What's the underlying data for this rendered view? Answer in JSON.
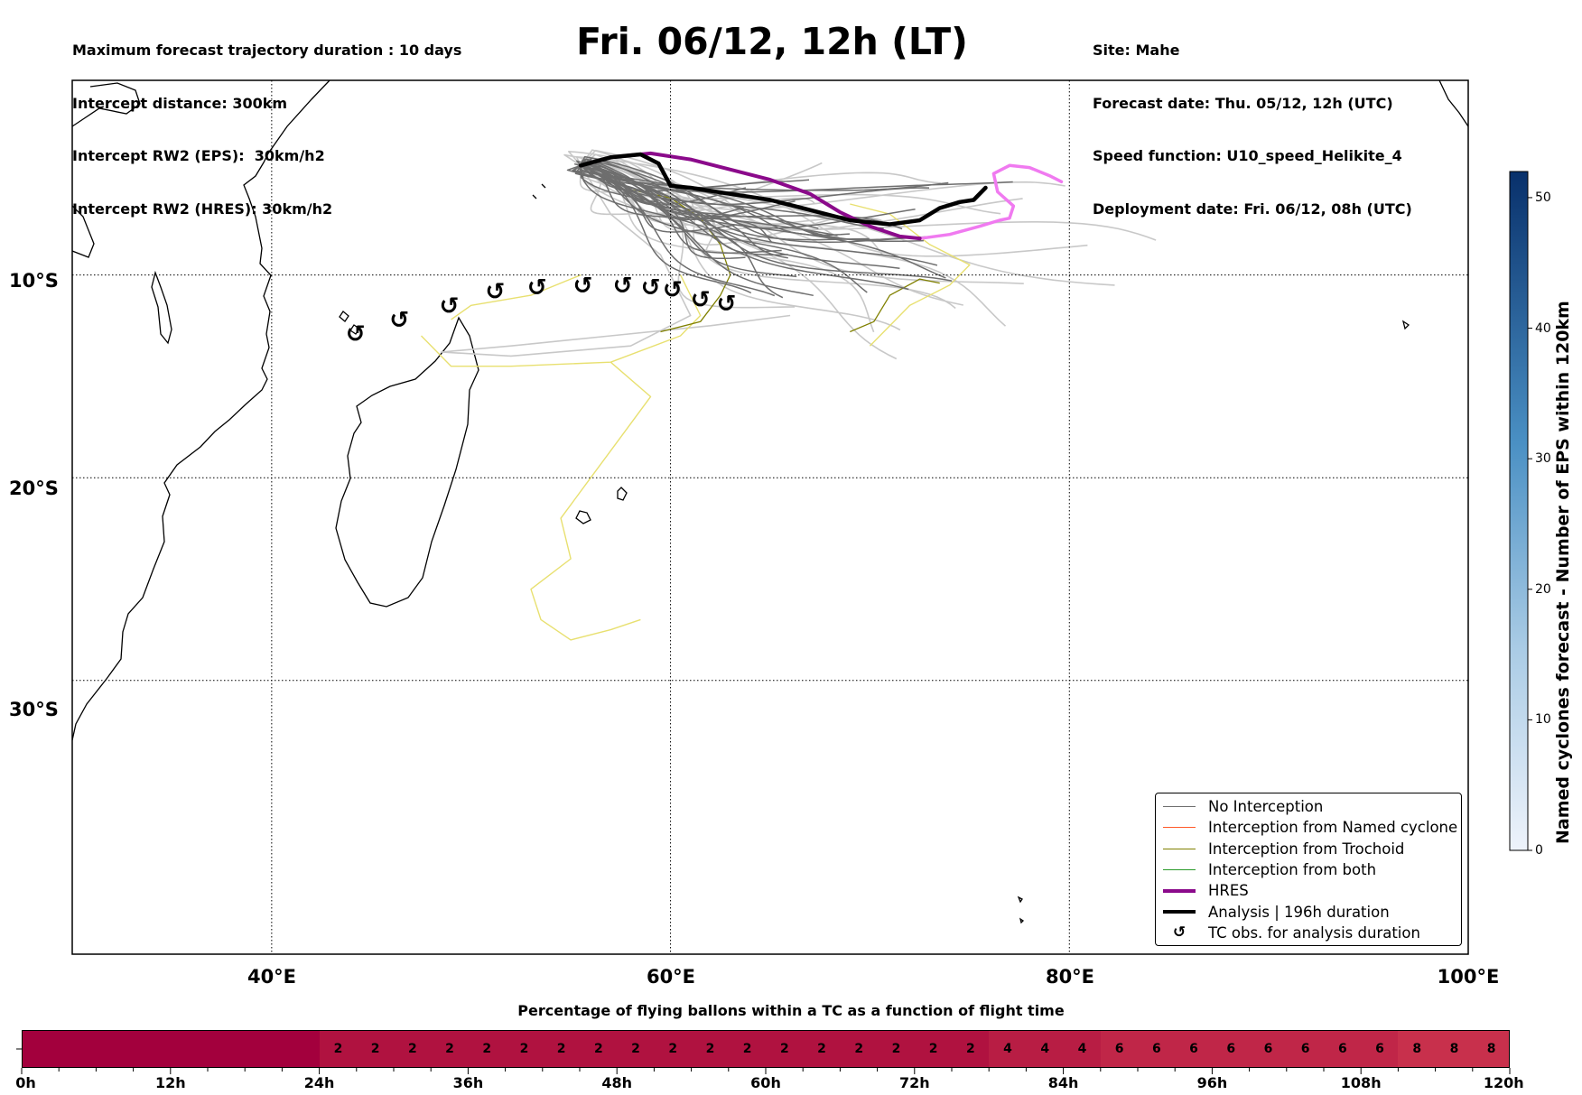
{
  "header": {
    "info_left": [
      "Maximum forecast trajectory duration : 10 days",
      "Intercept distance: 300km",
      "Intercept RW2 (EPS):  30km/h2",
      "Intercept RW2 (HRES): 30km/h2"
    ],
    "title": "Fri. 06/12, 12h (LT)",
    "info_right": [
      "Site: Mahe",
      "Forecast date: Thu. 05/12, 12h (UTC)",
      "Speed function: U10_speed_Helikite_4",
      "Deployment date: Fri. 06/12, 08h (UTC)"
    ]
  },
  "map": {
    "lon_labels": [
      "40°E",
      "60°E",
      "80°E",
      "100°E"
    ],
    "lat_labels": [
      "10°S",
      "20°S",
      "30°S"
    ],
    "lon_range": [
      30,
      100
    ],
    "lat_range": [
      -43.5,
      -0.4
    ],
    "gridlines": "dotted",
    "colors": {
      "no_interception": "#6e6e6e",
      "no_interception_light": "#c8c8c8",
      "named_cyclone": "#ff5a2a",
      "trochoid": "#808000",
      "trochoid_light": "#e8e070",
      "both": "#2a9a2a",
      "hres": "#8b0a8b",
      "hres_tail": "#f07af0",
      "analysis": "#000000"
    },
    "launch_site": {
      "lon": 55.5,
      "lat": -4.6
    },
    "analysis_track": [
      [
        55.5,
        -4.6
      ],
      [
        57,
        -4.2
      ],
      [
        58.5,
        -4.05
      ],
      [
        59.4,
        -4.5
      ],
      [
        60,
        -5.6
      ],
      [
        61,
        -5.7
      ],
      [
        63,
        -6.0
      ],
      [
        65,
        -6.3
      ],
      [
        67,
        -6.8
      ],
      [
        69,
        -7.3
      ],
      [
        71,
        -7.5
      ],
      [
        72.5,
        -7.3
      ],
      [
        73.5,
        -6.7
      ],
      [
        74.5,
        -6.4
      ],
      [
        75.2,
        -6.3
      ],
      [
        75.8,
        -5.7
      ]
    ],
    "hres_track": [
      [
        55.5,
        -4.6
      ],
      [
        57,
        -4.2
      ],
      [
        59,
        -4.0
      ],
      [
        61,
        -4.3
      ],
      [
        63,
        -4.8
      ],
      [
        65,
        -5.3
      ],
      [
        67,
        -6.0
      ],
      [
        68.5,
        -6.9
      ],
      [
        70,
        -7.6
      ],
      [
        71.5,
        -8.1
      ],
      [
        72.5,
        -8.2
      ]
    ],
    "hres_tail_track": [
      [
        72.5,
        -8.2
      ],
      [
        74,
        -8.0
      ],
      [
        75.5,
        -7.6
      ],
      [
        76.5,
        -7.3
      ],
      [
        77,
        -7.2
      ],
      [
        77.2,
        -6.6
      ],
      [
        76.4,
        -5.9
      ],
      [
        76.2,
        -5.0
      ],
      [
        77,
        -4.6
      ],
      [
        78,
        -4.7
      ],
      [
        79,
        -5.1
      ],
      [
        79.6,
        -5.4
      ]
    ],
    "tc_obs": [
      [
        44.2,
        -12.9
      ],
      [
        46.4,
        -12.2
      ],
      [
        48.9,
        -11.5
      ],
      [
        51.2,
        -10.8
      ],
      [
        53.3,
        -10.6
      ],
      [
        55.6,
        -10.5
      ],
      [
        57.6,
        -10.5
      ],
      [
        59,
        -10.6
      ],
      [
        60.1,
        -10.7
      ],
      [
        61.5,
        -11.2
      ],
      [
        62.8,
        -11.4
      ]
    ],
    "colorbar": {
      "title": "Named cyclones forecast - Number of EPS within 120km",
      "ticks": [
        0,
        10,
        20,
        30,
        40,
        50
      ],
      "max": 52,
      "color_low": "#eef3fb",
      "color_high": "#08306b"
    }
  },
  "legend": {
    "items": [
      {
        "label": "No Interception",
        "color": "#6e6e6e",
        "kind": "thin"
      },
      {
        "label": "Interception from Named cyclone",
        "color": "#ff5a2a",
        "kind": "thin"
      },
      {
        "label": "Interception from Trochoid",
        "color": "#808000",
        "kind": "thin"
      },
      {
        "label": "Interception from both",
        "color": "#2a9a2a",
        "kind": "thin"
      },
      {
        "label": "HRES",
        "color": "#8b0a8b",
        "kind": "thick"
      },
      {
        "label": "Analysis | 196h duration",
        "color": "#000000",
        "kind": "thick"
      },
      {
        "label": "TC obs. for analysis duration",
        "color": "#000000",
        "kind": "marker"
      }
    ]
  },
  "time_bar": {
    "title": "Percentage of flying ballons within a TC as a function of flight time",
    "tick_labels": [
      "0h",
      "12h",
      "24h",
      "36h",
      "48h",
      "60h",
      "72h",
      "84h",
      "96h",
      "108h",
      "120h"
    ],
    "max_hours": 120,
    "segments": [
      {
        "from": 0,
        "to": 24,
        "value": 0,
        "show": ""
      },
      {
        "from": 24,
        "to": 27,
        "value": 2,
        "show": "2"
      },
      {
        "from": 27,
        "to": 30,
        "value": 2,
        "show": "2"
      },
      {
        "from": 30,
        "to": 33,
        "value": 2,
        "show": "2"
      },
      {
        "from": 33,
        "to": 36,
        "value": 2,
        "show": "2"
      },
      {
        "from": 36,
        "to": 39,
        "value": 2,
        "show": "2"
      },
      {
        "from": 39,
        "to": 42,
        "value": 2,
        "show": "2"
      },
      {
        "from": 42,
        "to": 45,
        "value": 2,
        "show": "2"
      },
      {
        "from": 45,
        "to": 48,
        "value": 2,
        "show": "2"
      },
      {
        "from": 48,
        "to": 51,
        "value": 2,
        "show": "2"
      },
      {
        "from": 51,
        "to": 54,
        "value": 2,
        "show": "2"
      },
      {
        "from": 54,
        "to": 57,
        "value": 2,
        "show": "2"
      },
      {
        "from": 57,
        "to": 60,
        "value": 2,
        "show": "2"
      },
      {
        "from": 60,
        "to": 63,
        "value": 2,
        "show": "2"
      },
      {
        "from": 63,
        "to": 66,
        "value": 2,
        "show": "2"
      },
      {
        "from": 66,
        "to": 69,
        "value": 2,
        "show": "2"
      },
      {
        "from": 69,
        "to": 72,
        "value": 2,
        "show": "2"
      },
      {
        "from": 72,
        "to": 75,
        "value": 2,
        "show": "2"
      },
      {
        "from": 75,
        "to": 78,
        "value": 2,
        "show": "2"
      },
      {
        "from": 78,
        "to": 81,
        "value": 4,
        "show": "4"
      },
      {
        "from": 81,
        "to": 84,
        "value": 4,
        "show": "4"
      },
      {
        "from": 84,
        "to": 87,
        "value": 4,
        "show": "4"
      },
      {
        "from": 87,
        "to": 90,
        "value": 6,
        "show": "6"
      },
      {
        "from": 90,
        "to": 93,
        "value": 6,
        "show": "6"
      },
      {
        "from": 93,
        "to": 96,
        "value": 6,
        "show": "6"
      },
      {
        "from": 96,
        "to": 99,
        "value": 6,
        "show": "6"
      },
      {
        "from": 99,
        "to": 102,
        "value": 6,
        "show": "6"
      },
      {
        "from": 102,
        "to": 105,
        "value": 6,
        "show": "6"
      },
      {
        "from": 105,
        "to": 108,
        "value": 6,
        "show": "6"
      },
      {
        "from": 108,
        "to": 111,
        "value": 6,
        "show": "6"
      },
      {
        "from": 111,
        "to": 114,
        "value": 8,
        "show": "8"
      },
      {
        "from": 114,
        "to": 117,
        "value": 8,
        "show": "8"
      },
      {
        "from": 117,
        "to": 120,
        "value": 8,
        "show": "8"
      }
    ],
    "colors": {
      "0": "#a3003d",
      "2": "#b01240",
      "4": "#b81d44",
      "6": "#c02648",
      "8": "#c8304c"
    }
  }
}
